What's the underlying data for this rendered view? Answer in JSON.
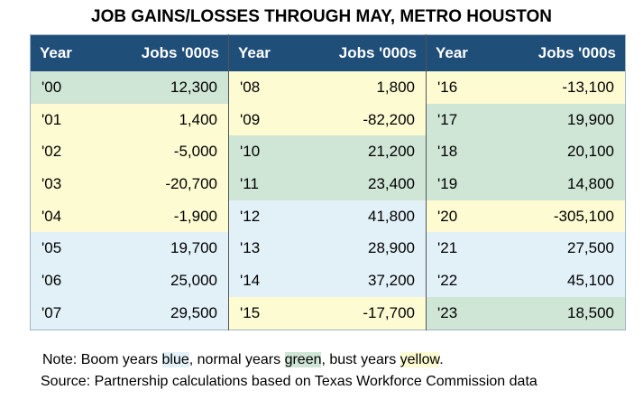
{
  "title": "JOB GAINS/LOSSES THROUGH MAY, METRO HOUSTON",
  "table": {
    "header": [
      "Year",
      "Jobs '000s",
      "Year",
      "Jobs '000s",
      "Year",
      "Jobs '000s"
    ],
    "rows": [
      [
        "'00",
        "12,300",
        "'08",
        "1,800",
        "'16",
        "-13,100"
      ],
      [
        "'01",
        "1,400",
        "'09",
        "-82,200",
        "'17",
        "19,900"
      ],
      [
        "'02",
        "-5,000",
        "'10",
        "21,200",
        "'18",
        "20,100"
      ],
      [
        "'03",
        "-20,700",
        "'11",
        "23,400",
        "'19",
        "14,800"
      ],
      [
        "'04",
        "-1,900",
        "'12",
        "41,800",
        "'20",
        "-305,100"
      ],
      [
        "'05",
        "19,700",
        "'13",
        "28,900",
        "'21",
        "27,500"
      ],
      [
        "'06",
        "25,000",
        "'14",
        "37,200",
        "'22",
        "45,100"
      ],
      [
        "'07",
        "29,500",
        "'15",
        "-17,700",
        "'23",
        "18,500"
      ]
    ],
    "row_colors": [
      [
        "#cfe5d5",
        "#fdfbd2",
        "#fdfbd2"
      ],
      [
        "#fdfbd2",
        "#fdfbd2",
        "#cfe5d5"
      ],
      [
        "#fdfbd2",
        "#cfe5d5",
        "#cfe5d5"
      ],
      [
        "#fdfbd2",
        "#cfe5d5",
        "#cfe5d5"
      ],
      [
        "#fdfbd2",
        "#e2f0f8",
        "#fdfbd2"
      ],
      [
        "#e2f0f8",
        "#e2f0f8",
        "#e2f0f8"
      ],
      [
        "#e2f0f8",
        "#e2f0f8",
        "#e2f0f8"
      ],
      [
        "#e2f0f8",
        "#fdfbd2",
        "#cfe5d5"
      ]
    ]
  },
  "note": [
    {
      "text": "Note: Boom years "
    },
    {
      "text": "blue",
      "highlight": "#e2f0f8"
    },
    {
      "text": ", normal years "
    },
    {
      "text": "green",
      "highlight": "#cfe5d5"
    },
    {
      "text": ", bust years "
    },
    {
      "text": "yellow",
      "highlight": "#fdfbd2"
    },
    {
      "text": "."
    }
  ],
  "source": "Source: Partnership calculations based on Texas Workforce Commission data"
}
